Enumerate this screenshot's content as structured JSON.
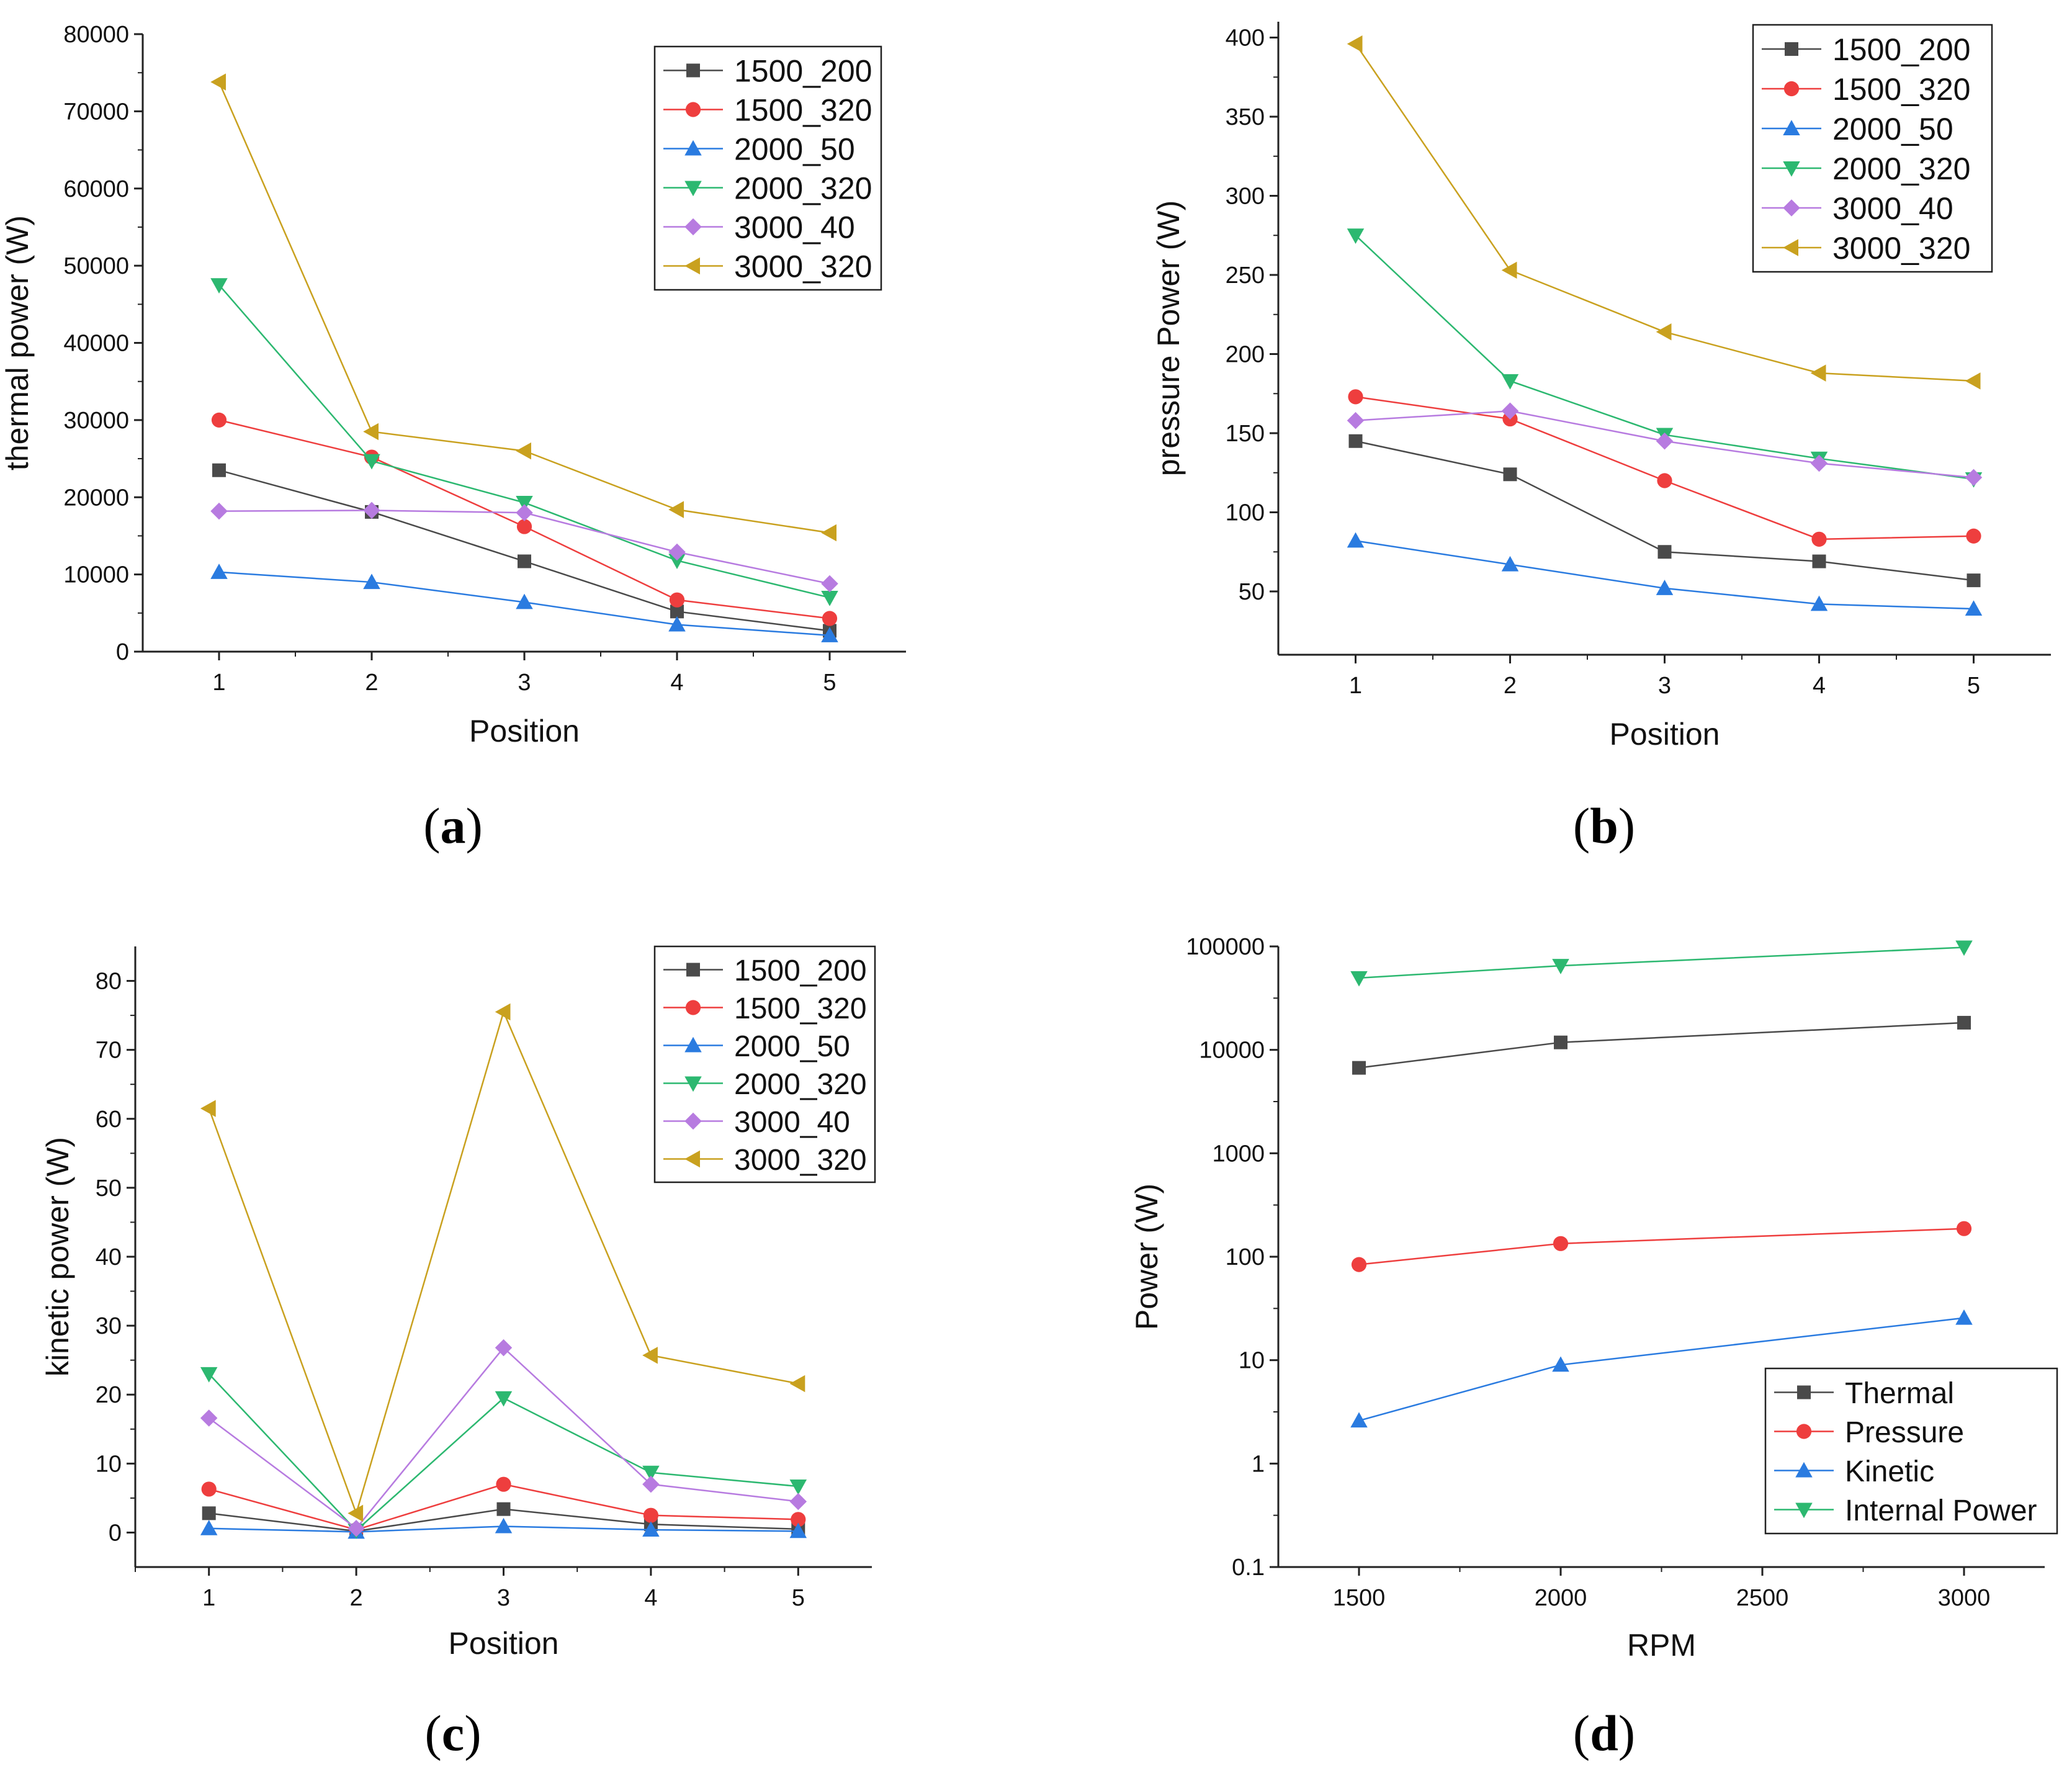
{
  "figure": {
    "panels": [
      {
        "id": "a",
        "label": "a"
      },
      {
        "id": "b",
        "label": "b"
      },
      {
        "id": "c",
        "label": "c"
      },
      {
        "id": "d",
        "label": "d"
      }
    ]
  },
  "chart_data": [
    {
      "id": "a",
      "type": "line",
      "title": "",
      "xlabel": "Position",
      "ylabel": "thermal power (W)",
      "x": [
        1,
        2,
        3,
        4,
        5
      ],
      "xlim": [
        0.5,
        5.5
      ],
      "ylim": [
        0,
        80000
      ],
      "xticks": [
        "1",
        "2",
        "3",
        "4",
        "5"
      ],
      "yticks": [
        "0",
        "10000",
        "20000",
        "30000",
        "40000",
        "50000",
        "60000",
        "70000",
        "80000"
      ],
      "legend_position": "top-right",
      "series": [
        {
          "name": "1500_200",
          "color": "#4a4a4a",
          "marker": "square",
          "values": [
            23500,
            18100,
            11700,
            5200,
            2700
          ]
        },
        {
          "name": "1500_320",
          "color": "#ee3e3e",
          "marker": "circle",
          "values": [
            30000,
            25200,
            16200,
            6700,
            4300
          ]
        },
        {
          "name": "2000_50",
          "color": "#2a7be0",
          "marker": "triangle-up",
          "values": [
            10300,
            9000,
            6400,
            3500,
            2100
          ]
        },
        {
          "name": "2000_320",
          "color": "#2cb870",
          "marker": "triangle-down",
          "values": [
            47500,
            24700,
            19300,
            11800,
            7000
          ]
        },
        {
          "name": "3000_40",
          "color": "#b77be0",
          "marker": "diamond",
          "values": [
            18200,
            18300,
            18000,
            12900,
            8800
          ]
        },
        {
          "name": "3000_320",
          "color": "#c9a11f",
          "marker": "triangle-left",
          "values": [
            73800,
            28500,
            26000,
            18400,
            15400
          ]
        }
      ]
    },
    {
      "id": "b",
      "type": "line",
      "title": "",
      "xlabel": "Position",
      "ylabel": "pressure Power  (W)",
      "x": [
        1,
        2,
        3,
        4,
        5
      ],
      "xlim": [
        0.5,
        5.5
      ],
      "ylim": [
        10,
        410
      ],
      "xticks": [
        "1",
        "2",
        "3",
        "4",
        "5"
      ],
      "yticks": [
        "50",
        "100",
        "150",
        "200",
        "250",
        "300",
        "350",
        "400"
      ],
      "legend_position": "top-right",
      "series": [
        {
          "name": "1500_200",
          "color": "#4a4a4a",
          "marker": "square",
          "values": [
            145,
            124,
            75,
            69,
            57
          ]
        },
        {
          "name": "1500_320",
          "color": "#ee3e3e",
          "marker": "circle",
          "values": [
            173,
            159,
            120,
            83,
            85
          ]
        },
        {
          "name": "2000_50",
          "color": "#2a7be0",
          "marker": "triangle-up",
          "values": [
            82,
            67,
            52,
            42,
            39
          ]
        },
        {
          "name": "2000_320",
          "color": "#2cb870",
          "marker": "triangle-down",
          "values": [
            275,
            183,
            149,
            134,
            121
          ]
        },
        {
          "name": "3000_40",
          "color": "#b77be0",
          "marker": "diamond",
          "values": [
            158,
            164,
            145,
            131,
            122
          ]
        },
        {
          "name": "3000_320",
          "color": "#c9a11f",
          "marker": "triangle-left",
          "values": [
            396,
            253,
            214,
            188,
            183
          ]
        }
      ]
    },
    {
      "id": "c",
      "type": "line",
      "title": "",
      "xlabel": "Position",
      "ylabel": "kinetic power (W)",
      "x": [
        1,
        2,
        3,
        4,
        5
      ],
      "xlim": [
        0.5,
        5.5
      ],
      "ylim": [
        -5,
        85
      ],
      "xticks": [
        "1",
        "2",
        "3",
        "4",
        "5"
      ],
      "yticks": [
        "0",
        "10",
        "20",
        "30",
        "40",
        "50",
        "60",
        "70",
        "80"
      ],
      "legend_position": "top-right",
      "series": [
        {
          "name": "1500_200",
          "color": "#4a4a4a",
          "marker": "square",
          "values": [
            2.8,
            0.2,
            3.4,
            1.2,
            0.5
          ]
        },
        {
          "name": "1500_320",
          "color": "#ee3e3e",
          "marker": "circle",
          "values": [
            6.3,
            0.4,
            7.0,
            2.5,
            1.9
          ]
        },
        {
          "name": "2000_50",
          "color": "#2a7be0",
          "marker": "triangle-up",
          "values": [
            0.6,
            0.1,
            0.9,
            0.4,
            0.2
          ]
        },
        {
          "name": "2000_320",
          "color": "#2cb870",
          "marker": "triangle-down",
          "values": [
            23.0,
            0.3,
            19.5,
            8.7,
            6.7
          ]
        },
        {
          "name": "3000_40",
          "color": "#b77be0",
          "marker": "diamond",
          "values": [
            16.6,
            0.6,
            26.8,
            7.0,
            4.5
          ]
        },
        {
          "name": "3000_320",
          "color": "#c9a11f",
          "marker": "triangle-left",
          "values": [
            61.5,
            2.8,
            75.5,
            25.7,
            21.6
          ]
        }
      ]
    },
    {
      "id": "d",
      "type": "line",
      "title": "",
      "xlabel": "RPM",
      "ylabel": "Power (W)",
      "yscale": "log",
      "x": [
        1500,
        2000,
        3000
      ],
      "xlim": [
        1300,
        3200
      ],
      "ylim": [
        0.1,
        100000
      ],
      "xticks": [
        "1500",
        "2000",
        "2500",
        "3000"
      ],
      "yticks": [
        "0.1",
        "1",
        "10",
        "100",
        "1000",
        "10000",
        "100000"
      ],
      "legend_position": "bottom-right",
      "series": [
        {
          "name": "Thermal",
          "color": "#4a4a4a",
          "marker": "square",
          "values": [
            6700,
            11800,
            18300
          ]
        },
        {
          "name": "Pressure",
          "color": "#ee3e3e",
          "marker": "circle",
          "values": [
            84,
            134,
            187
          ]
        },
        {
          "name": "Kinetic",
          "color": "#2a7be0",
          "marker": "triangle-up",
          "values": [
            2.6,
            9.0,
            25.6
          ]
        },
        {
          "name": "Internal Power",
          "color": "#2cb870",
          "marker": "triangle-down",
          "values": [
            49500,
            65000,
            98000
          ]
        }
      ]
    }
  ]
}
